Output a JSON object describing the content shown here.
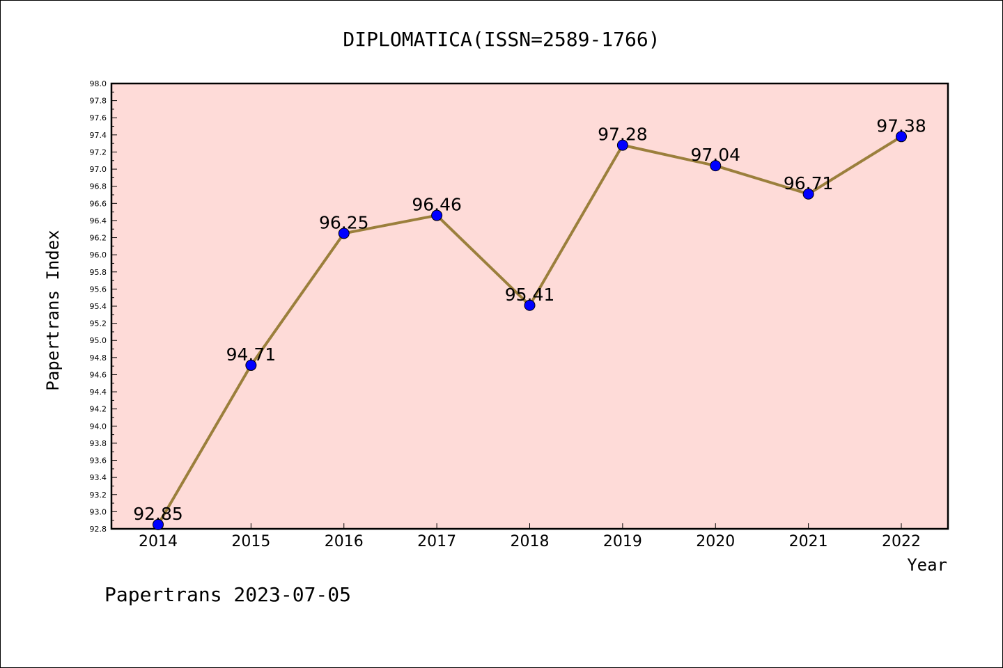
{
  "chart_data": {
    "type": "line",
    "title": "DIPLOMATICA(ISSN=2589-1766)",
    "xlabel": "Year",
    "ylabel": "Papertrans Index",
    "categories": [
      "2014",
      "2015",
      "2016",
      "2017",
      "2018",
      "2019",
      "2020",
      "2021",
      "2022"
    ],
    "values": [
      92.85,
      94.71,
      96.25,
      96.46,
      95.41,
      97.28,
      97.04,
      96.71,
      97.38
    ],
    "data_labels": [
      "92.85",
      "94.71",
      "96.25",
      "96.46",
      "95.41",
      "97.28",
      "97.04",
      "96.71",
      "97.38"
    ],
    "ylim": [
      92.8,
      98.0
    ],
    "yticks": [
      "92.8",
      "93.0",
      "93.2",
      "93.4",
      "93.6",
      "93.8",
      "94.0",
      "94.2",
      "94.4",
      "94.6",
      "94.8",
      "95.0",
      "95.2",
      "95.4",
      "95.6",
      "95.8",
      "96.0",
      "96.2",
      "96.4",
      "96.6",
      "96.8",
      "97.0",
      "97.2",
      "97.4",
      "97.6",
      "97.8",
      "98.0"
    ],
    "grid": false,
    "colors": {
      "plot_background": "#fedbd8",
      "line": "#9b7f3c",
      "marker": "#0000ff"
    }
  },
  "footer": "Papertrans 2023-07-05"
}
